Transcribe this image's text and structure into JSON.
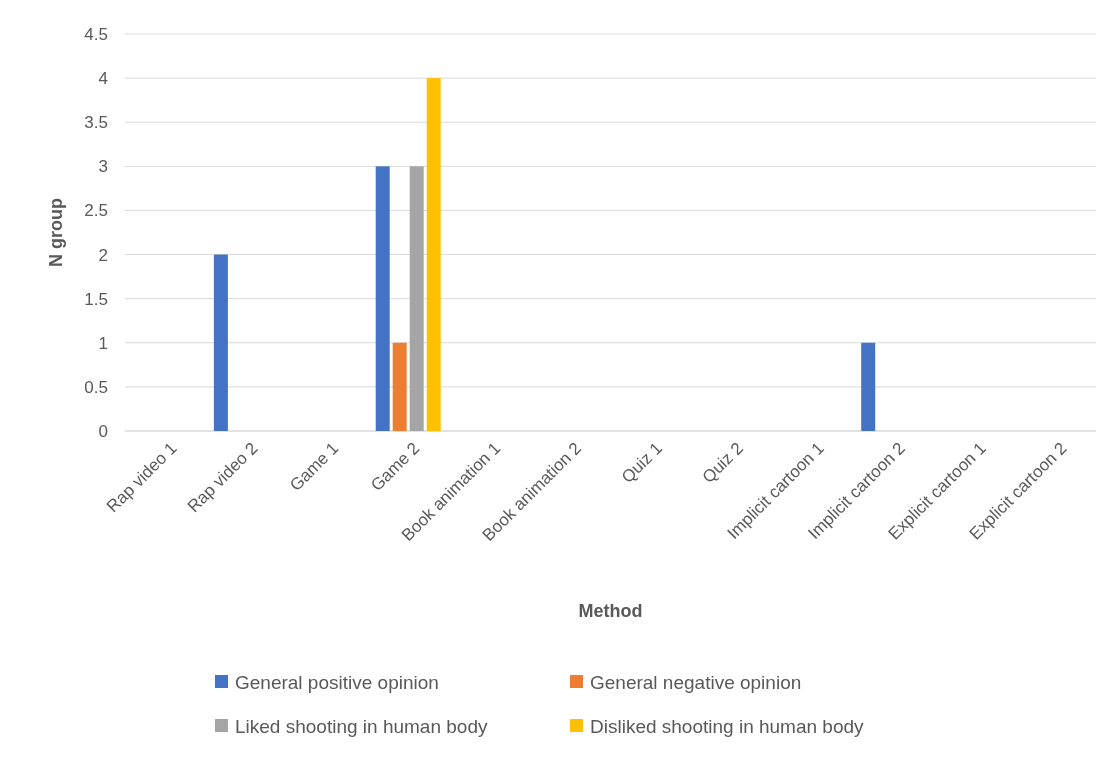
{
  "chart_data": {
    "type": "bar",
    "xlabel": "Method",
    "ylabel": "N group",
    "categories": [
      "Rap video 1",
      "Rap video 2",
      "Game 1",
      "Game 2",
      "Book animation 1",
      "Book animation 2",
      "Quiz 1",
      "Quiz 2",
      "Implicit cartoon 1",
      "Implicit cartoon 2",
      "Explicit cartoon 1",
      "Explicit cartoon 2"
    ],
    "series": [
      {
        "name": "General positive opinion",
        "color": "#4472c4",
        "values": [
          0,
          2,
          0,
          3,
          0,
          0,
          0,
          0,
          0,
          1,
          0,
          0
        ]
      },
      {
        "name": "General negative opinion",
        "color": "#ed7d31",
        "values": [
          0,
          0,
          0,
          1,
          0,
          0,
          0,
          0,
          0,
          0,
          0,
          0
        ]
      },
      {
        "name": "Liked shooting in human body",
        "color": "#a5a5a5",
        "values": [
          0,
          0,
          0,
          3,
          0,
          0,
          0,
          0,
          0,
          0,
          0,
          0
        ]
      },
      {
        "name": "Disliked shooting in human body",
        "color": "#ffc000",
        "values": [
          0,
          0,
          0,
          4,
          0,
          0,
          0,
          0,
          0,
          0,
          0,
          0
        ]
      }
    ],
    "ylim": [
      0,
      4.5
    ],
    "yticks": [
      0,
      0.5,
      1,
      1.5,
      2,
      2.5,
      3,
      3.5,
      4,
      4.5
    ],
    "grid": "y",
    "legend": "bottom"
  }
}
